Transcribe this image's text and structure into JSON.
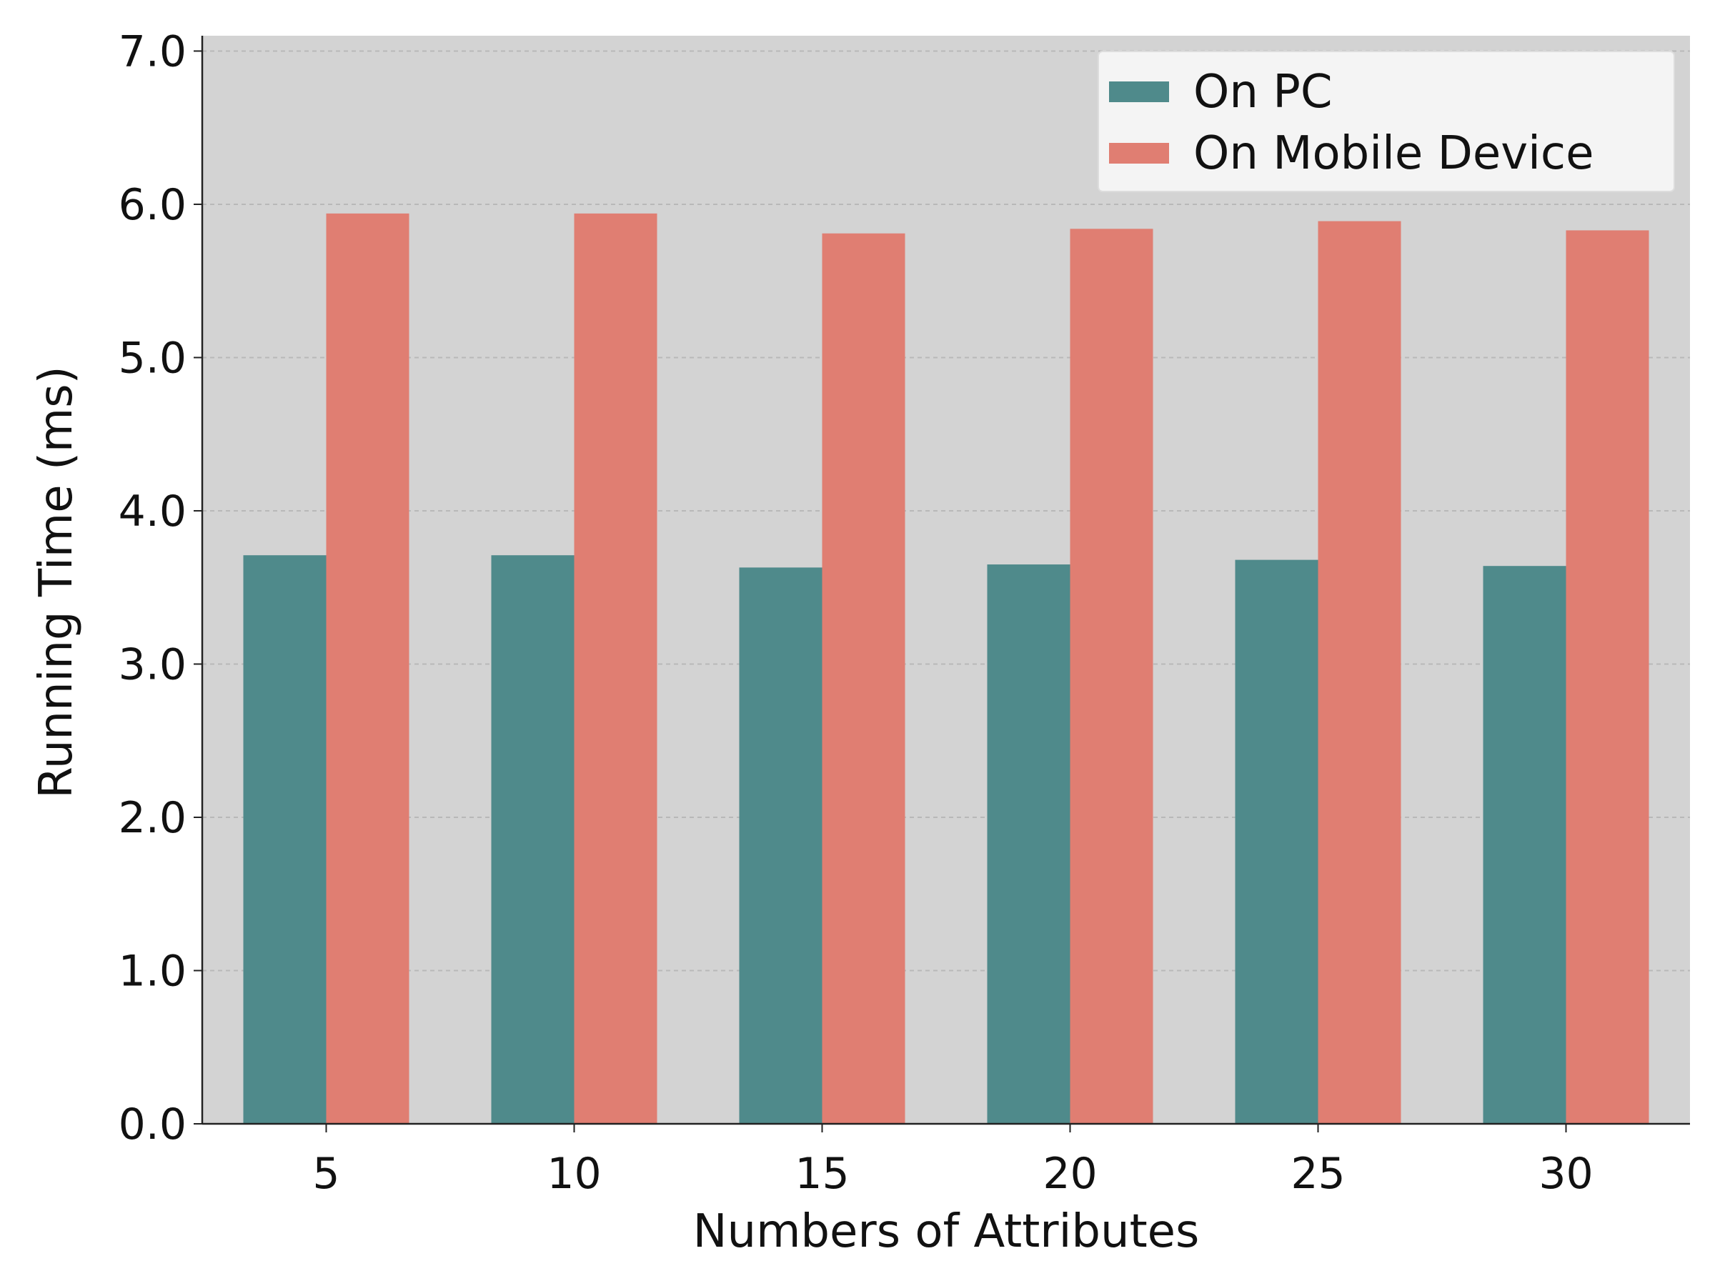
{
  "chart_data": {
    "type": "bar",
    "categories": [
      "5",
      "10",
      "15",
      "20",
      "25",
      "30"
    ],
    "series": [
      {
        "name": "On PC",
        "color": "#4f8a8b",
        "values": [
          3.71,
          3.71,
          3.63,
          3.65,
          3.68,
          3.64
        ]
      },
      {
        "name": "On Mobile Device",
        "color": "#e07e72",
        "values": [
          5.94,
          5.94,
          5.81,
          5.84,
          5.89,
          5.83
        ]
      }
    ],
    "xlabel": "Numbers of Attributes",
    "ylabel": "Running Time (ms)",
    "ylim": [
      0,
      7.1
    ],
    "yticks": [
      "0.0",
      "1.0",
      "2.0",
      "3.0",
      "4.0",
      "5.0",
      "6.0",
      "7.0"
    ],
    "grid": "horizontal dashed",
    "legend_position": "top-right",
    "plot_background": "#d3d3d3"
  }
}
